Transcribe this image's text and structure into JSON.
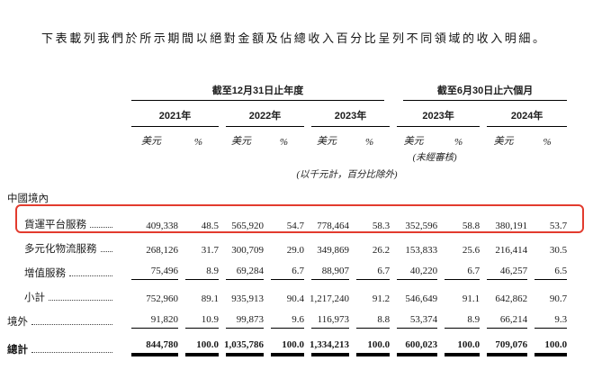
{
  "intro": "下表載列我們於所示期間以絕對金額及佔總收入百分比呈列不同領域的收入明細。",
  "highlight_color": "#e23b2e",
  "table": {
    "groups": [
      {
        "label": "截至12月31日止年度"
      },
      {
        "label": "截至6月30日止六個月"
      }
    ],
    "years": [
      "2021年",
      "2022年",
      "2023年",
      "2023年",
      "2024年"
    ],
    "units": {
      "currency": "美元",
      "percent": "%"
    },
    "notes": {
      "unaudited": "(未經審核)",
      "thousands": "(以千元計，百分比除外)"
    },
    "section": "中國境內",
    "rows": [
      {
        "label": "貨運平台服務",
        "values": [
          "409,338",
          "48.5",
          "565,920",
          "54.7",
          "778,464",
          "58.3",
          "352,596",
          "58.8",
          "380,191",
          "53.7"
        ]
      },
      {
        "label": "多元化物流服務",
        "values": [
          "268,126",
          "31.7",
          "300,709",
          "29.0",
          "349,869",
          "26.2",
          "153,833",
          "25.6",
          "216,414",
          "30.5"
        ]
      },
      {
        "label": "增值服務",
        "values": [
          "75,496",
          "8.9",
          "69,284",
          "6.7",
          "88,907",
          "6.7",
          "40,220",
          "6.7",
          "46,257",
          "6.5"
        ]
      },
      {
        "label": "小計",
        "values": [
          "752,960",
          "89.1",
          "935,913",
          "90.4",
          "1,217,240",
          "91.2",
          "546,649",
          "91.1",
          "642,862",
          "90.7"
        ]
      },
      {
        "label": "境外",
        "values": [
          "91,820",
          "10.9",
          "99,873",
          "9.6",
          "116,973",
          "8.8",
          "53,374",
          "8.9",
          "66,214",
          "9.3"
        ]
      },
      {
        "label": "總計",
        "values": [
          "844,780",
          "100.0",
          "1,035,786",
          "100.0",
          "1,334,213",
          "100.0",
          "600,023",
          "100.0",
          "709,076",
          "100.0"
        ]
      }
    ]
  }
}
